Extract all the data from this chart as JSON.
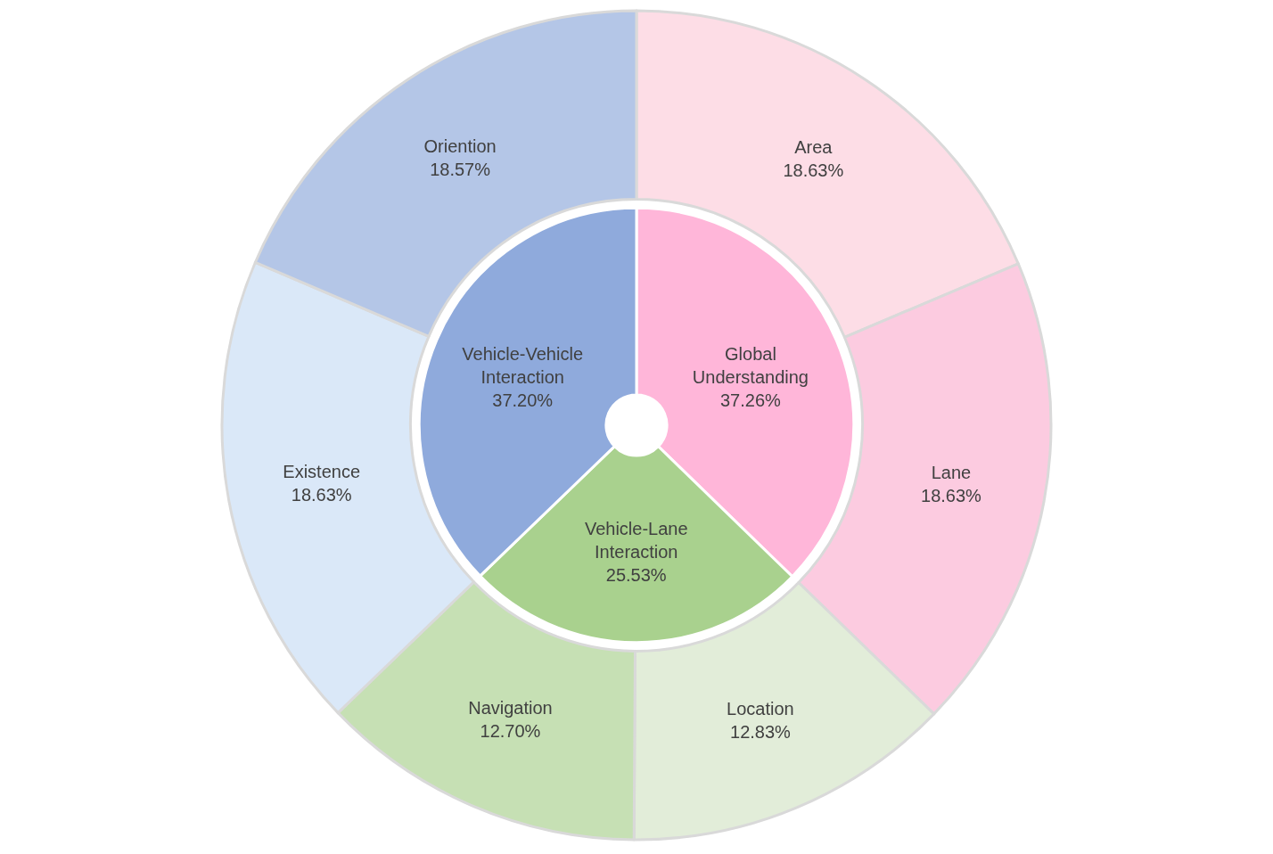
{
  "chart_data": [
    {
      "type": "donut",
      "categories": [
        "Global Understanding",
        "Vehicle-Lane Interaction",
        "Vehicle-Vehicle Interaction"
      ],
      "values": [
        37.26,
        25.53,
        37.2
      ],
      "value_labels": [
        "37.26%",
        "25.53%",
        "37.20%"
      ],
      "colors": [
        "#ffb6d9",
        "#a9d18e",
        "#8faadc"
      ]
    },
    {
      "type": "donut",
      "categories": [
        "Area",
        "Lane",
        "Location",
        "Navigation",
        "Existence",
        "Oriention"
      ],
      "values": [
        18.63,
        18.63,
        12.83,
        12.7,
        18.63,
        18.57
      ],
      "value_labels": [
        "18.63%",
        "18.63%",
        "12.83%",
        "12.70%",
        "18.63%",
        "18.57%"
      ],
      "colors": [
        "#fddde6",
        "#fccbe0",
        "#e2edd9",
        "#c6e0b4",
        "#dae8f8",
        "#b4c6e7"
      ]
    }
  ]
}
